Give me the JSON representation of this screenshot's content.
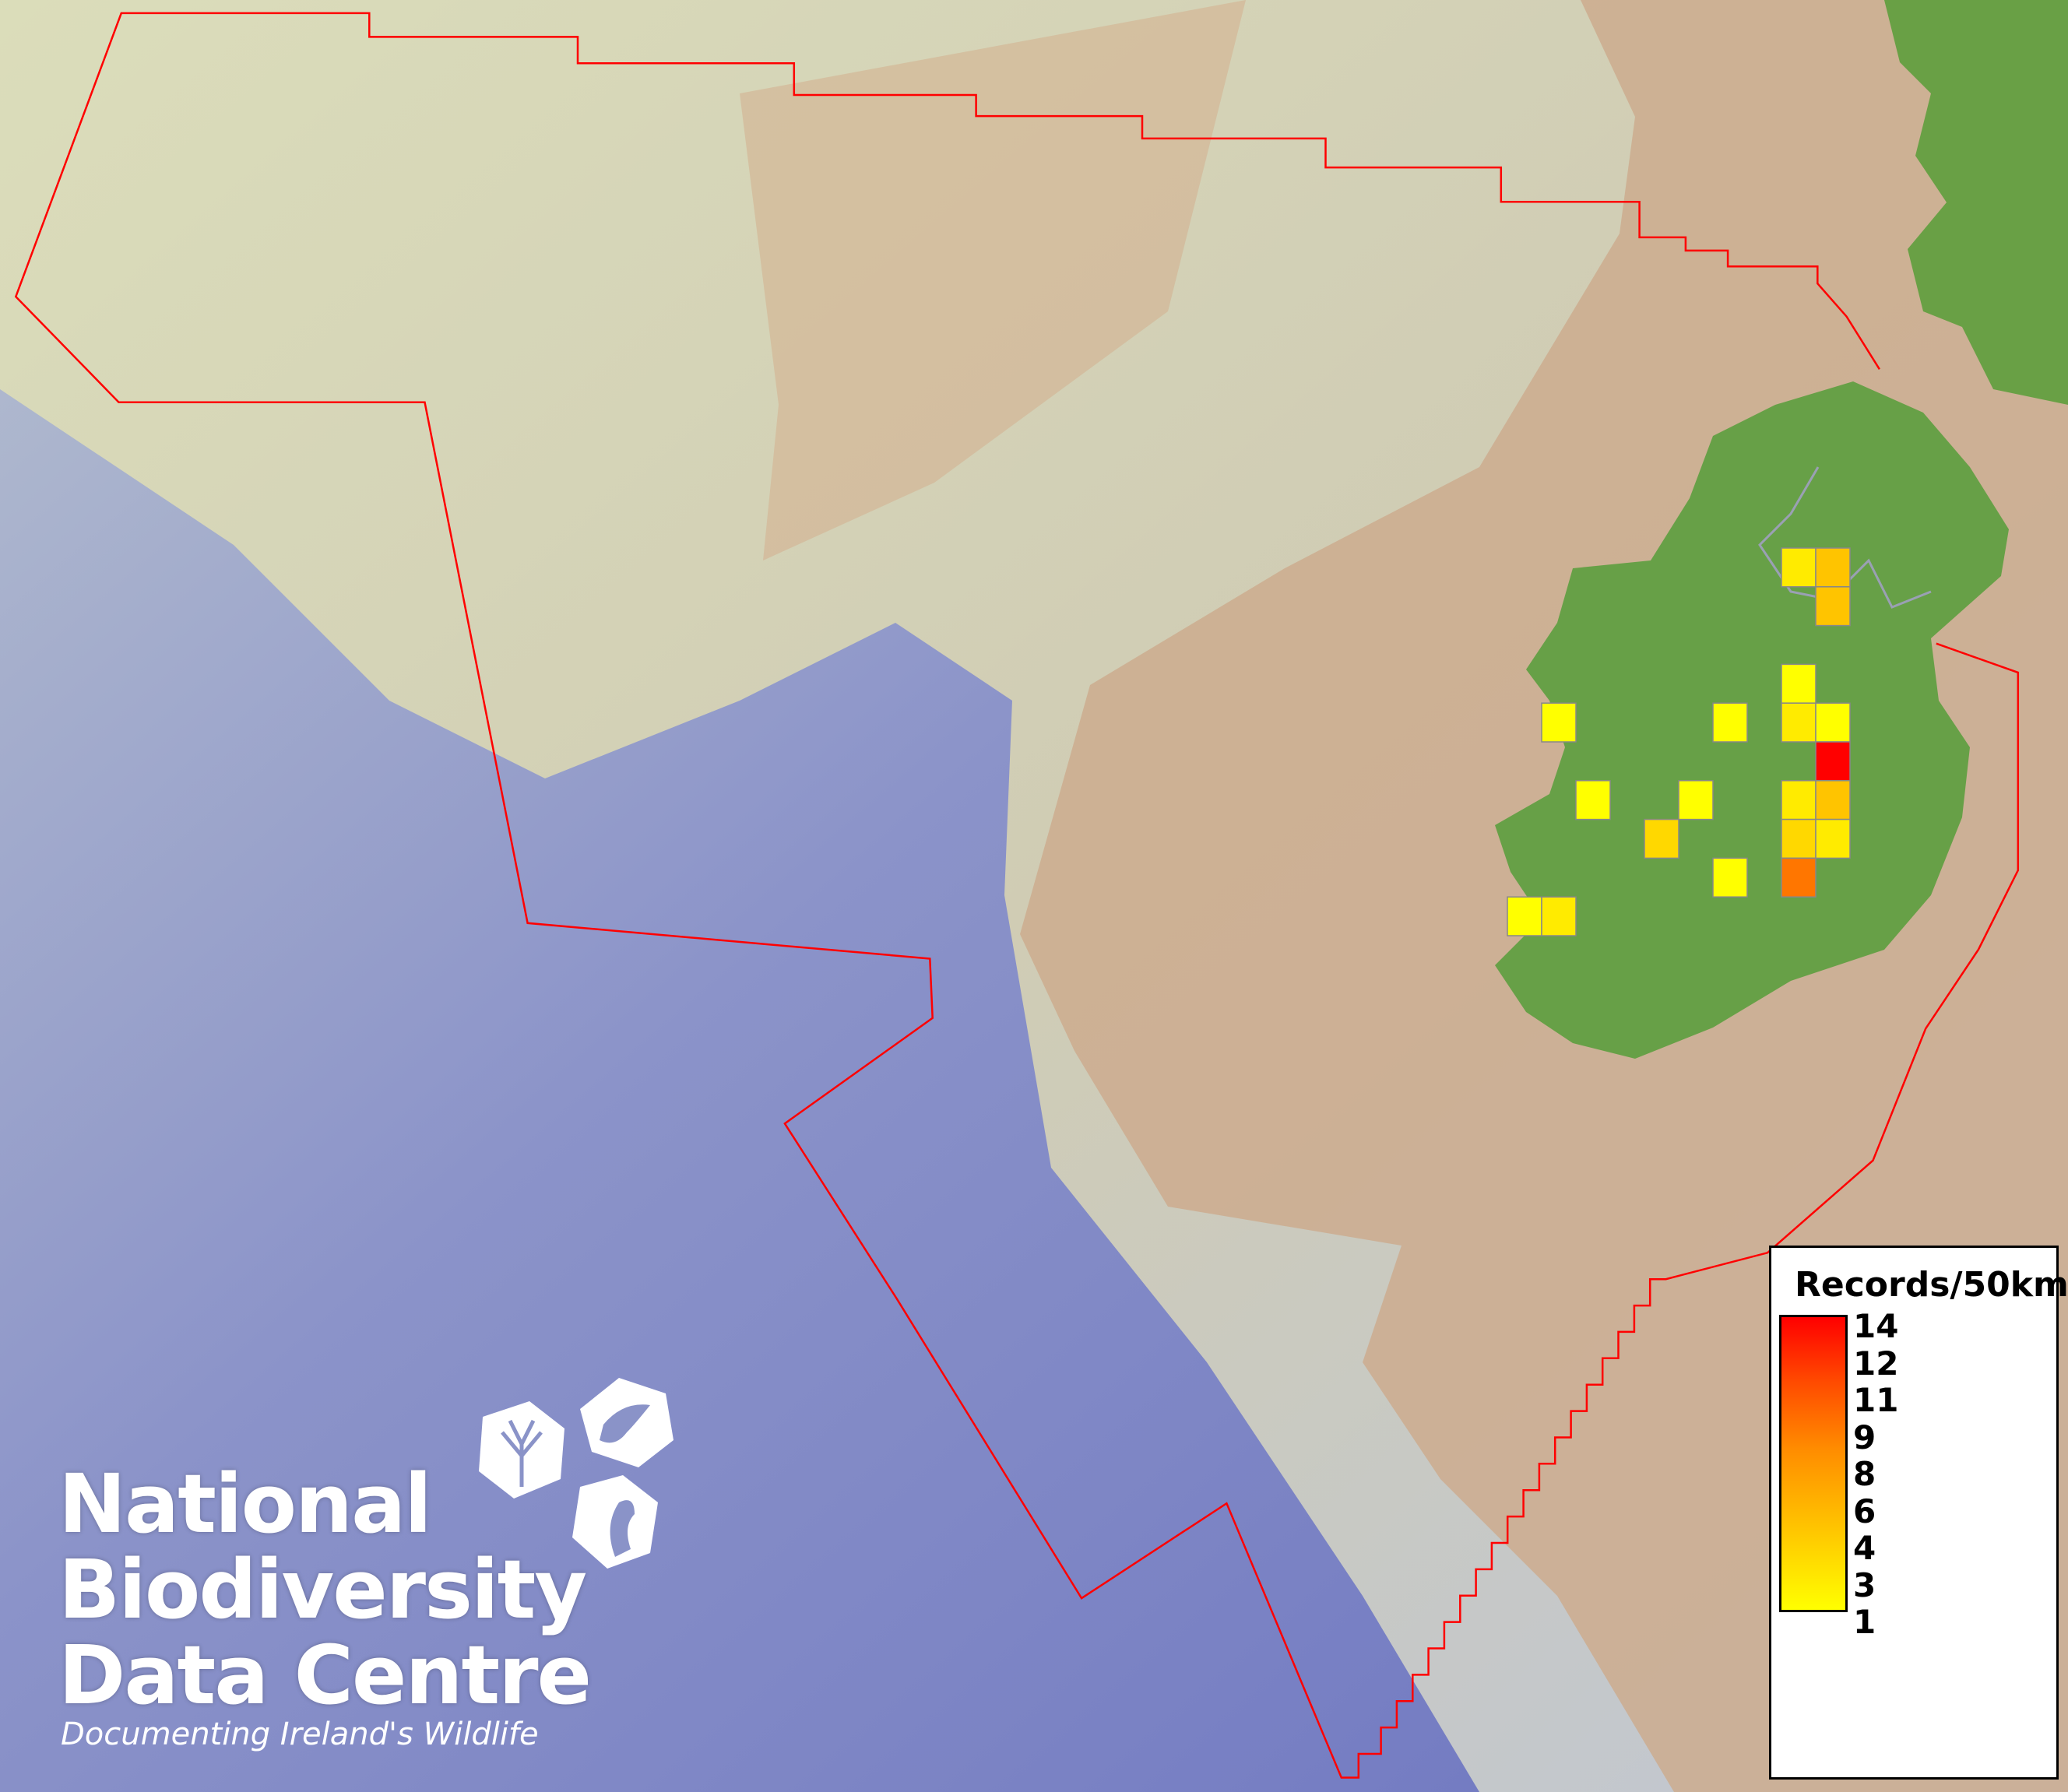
{
  "map": {
    "boundary_color": "#ff0000",
    "cell_outline_color": "#888888",
    "grid_cells": [
      {
        "col": 8,
        "row": 0,
        "records": 2
      },
      {
        "col": 9,
        "row": 0,
        "records": 4
      },
      {
        "col": 9,
        "row": 1,
        "records": 4
      },
      {
        "col": 8,
        "row": 3,
        "records": 1
      },
      {
        "col": 8,
        "row": 4,
        "records": 2
      },
      {
        "col": 9,
        "row": 4,
        "records": 1
      },
      {
        "col": 9,
        "row": 5,
        "records": 14
      },
      {
        "col": 8,
        "row": 6,
        "records": 2
      },
      {
        "col": 9,
        "row": 6,
        "records": 4
      },
      {
        "col": 8,
        "row": 7,
        "records": 3
      },
      {
        "col": 9,
        "row": 7,
        "records": 2
      },
      {
        "col": 8,
        "row": 8,
        "records": 8
      },
      {
        "col": 1,
        "row": 4,
        "records": 1
      },
      {
        "col": 6,
        "row": 4,
        "records": 1
      },
      {
        "col": 2,
        "row": 6,
        "records": 1
      },
      {
        "col": 5,
        "row": 6,
        "records": 1
      },
      {
        "col": 4,
        "row": 7,
        "records": 3
      },
      {
        "col": 6,
        "row": 8,
        "records": 1
      },
      {
        "col": 0,
        "row": 9,
        "records": 1
      },
      {
        "col": 1,
        "row": 9,
        "records": 2
      }
    ]
  },
  "legend": {
    "title": "Records/50km",
    "min_color": "#ffff00",
    "max_color": "#ff0000",
    "labels": [
      "14",
      "12",
      "11",
      "9",
      "8",
      "6",
      "4",
      "3",
      "1"
    ]
  },
  "logo": {
    "line1": "National",
    "line2": "Biodiversity",
    "line3": "Data Centre",
    "tagline": "Documenting Ireland's Wildlife"
  }
}
